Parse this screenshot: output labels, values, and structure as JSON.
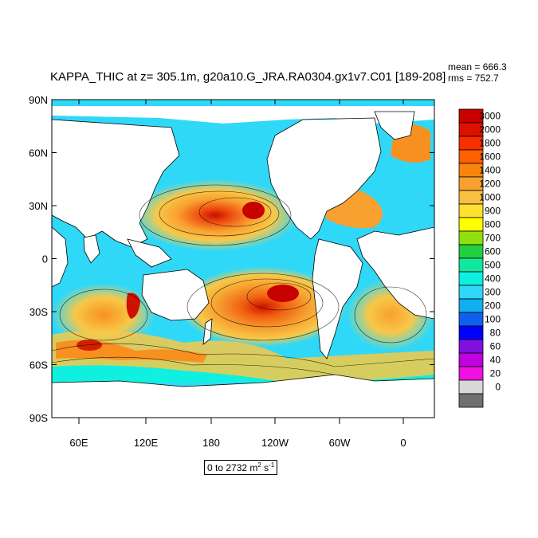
{
  "title": "KAPPA_THIC at z= 305.1m, g20a10.G_JRA.RA0304.gx1v7.C01 [189-208]",
  "stats": {
    "mean": "mean = 666.3",
    "rms": "rms = 752.7"
  },
  "range": {
    "text": "0 to 2732 m",
    "unit_sup1": "2",
    "unit_mid": " s",
    "unit_sup2": "-1"
  },
  "map": {
    "lat_labels": [
      "90N",
      "60N",
      "30N",
      "0",
      "30S",
      "60S",
      "90S"
    ],
    "lon_labels": [
      "60E",
      "120E",
      "180",
      "120W",
      "60W",
      "0"
    ],
    "land_color": "#ffffff"
  },
  "colorbar": {
    "levels": [
      "3000",
      "2000",
      "1800",
      "1600",
      "1400",
      "1200",
      "1000",
      "900",
      "800",
      "700",
      "600",
      "500",
      "400",
      "300",
      "200",
      "100",
      "80",
      "60",
      "40",
      "20",
      "0"
    ],
    "colors": [
      "#c80000",
      "#e01000",
      "#f83000",
      "#ff6000",
      "#f8840c",
      "#f7a030",
      "#f8c040",
      "#ffe030",
      "#ffff00",
      "#90e010",
      "#20d040",
      "#10e8a0",
      "#10f0e0",
      "#30d8f8",
      "#10b0f0",
      "#1060f0",
      "#0000ff",
      "#8010e0",
      "#c000e0",
      "#f010e0",
      "#d8d8d8",
      "#707070"
    ]
  }
}
